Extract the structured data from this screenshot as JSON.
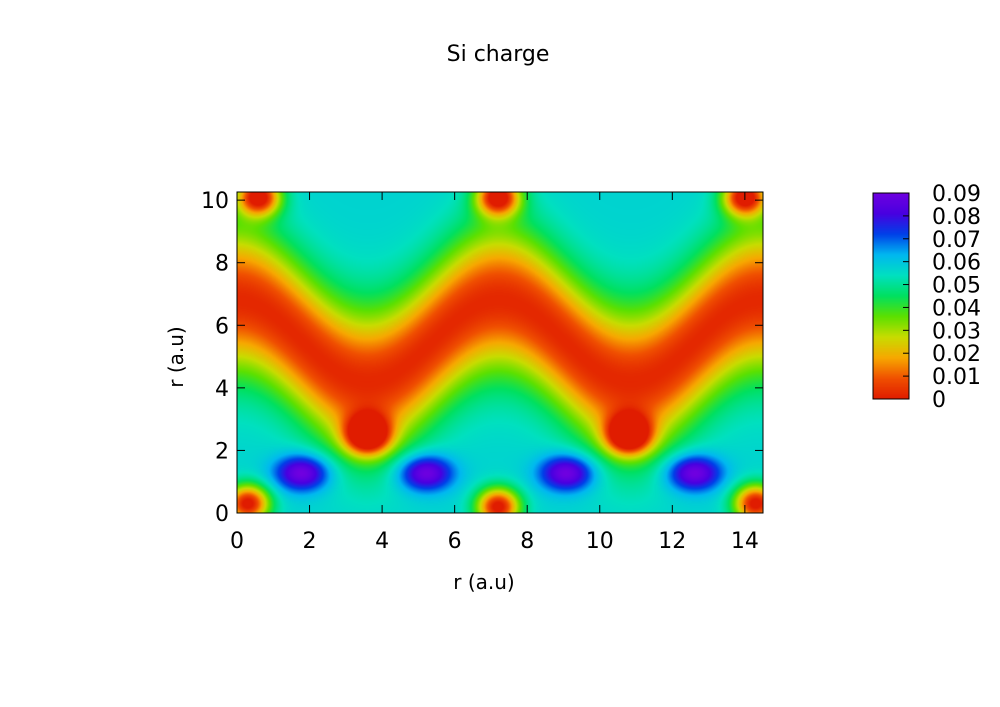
{
  "chart_data": {
    "type": "heatmap",
    "title": "Si charge",
    "xlabel": "r (a.u)",
    "ylabel": "r (a.u)",
    "xlim": [
      0,
      14.5
    ],
    "ylim": [
      0,
      10.26
    ],
    "xticks": [
      0,
      2,
      4,
      6,
      8,
      10,
      12,
      14
    ],
    "yticks": [
      0,
      2,
      4,
      6,
      8,
      10
    ],
    "colorbar": {
      "range": [
        0,
        0.09
      ],
      "ticks": [
        0,
        0.01,
        0.02,
        0.03,
        0.04,
        0.05,
        0.06,
        0.07,
        0.08,
        0.09
      ],
      "tick_labels": [
        "0",
        "0.01",
        "0.02",
        "0.03",
        "0.04",
        "0.05",
        "0.06",
        "0.07",
        "0.08",
        "0.09"
      ],
      "palette": [
        "#e01c00",
        "#f05000",
        "#f7a800",
        "#c8dc00",
        "#5ce000",
        "#00e060",
        "#00e0c0",
        "#00b8f0",
        "#0040e8",
        "#4800e0",
        "#7000e0"
      ]
    },
    "features": {
      "bond_maxima": [
        {
          "x": 1.8,
          "y": 1.28,
          "value": 0.088
        },
        {
          "x": 5.2,
          "y": 1.28,
          "value": 0.088
        },
        {
          "x": 9.1,
          "y": 1.28,
          "value": 0.088
        },
        {
          "x": 12.6,
          "y": 1.28,
          "value": 0.088
        }
      ],
      "low_density_pockets": [
        {
          "x": 3.6,
          "y": 2.5
        },
        {
          "x": 10.8,
          "y": 2.5
        },
        {
          "x": 0.3,
          "y": 0.3
        },
        {
          "x": 7.2,
          "y": 0.2
        },
        {
          "x": 14.3,
          "y": 0.3
        },
        {
          "x": 0.6,
          "y": 10.1
        },
        {
          "x": 7.2,
          "y": 10.1
        },
        {
          "x": 14.0,
          "y": 10.1
        }
      ],
      "interstitial_band": {
        "center_y": 5.5,
        "amplitude": 1.3,
        "period": 7.25,
        "value": 0.002
      }
    }
  }
}
